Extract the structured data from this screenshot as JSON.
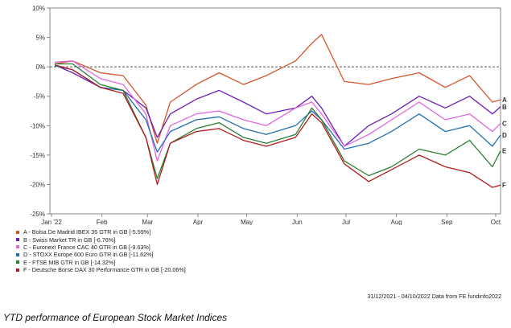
{
  "caption": "YTD performance of European Stock Market Indices",
  "source_note": "31/12/2021 - 04/10/2022 Data from FE fundinfo2022",
  "chart_data": {
    "type": "line",
    "title": "",
    "xlabel": "",
    "ylabel": "",
    "x_ticks": [
      "Jan '22",
      "Feb",
      "Mar",
      "Apr",
      "May",
      "Jun",
      "Jul",
      "Aug",
      "Sep",
      "Oct"
    ],
    "y_ticks": [
      "10%",
      "5%",
      "0%",
      "-5%",
      "-10%",
      "-15%",
      "-20%",
      "-25%"
    ],
    "ylim": [
      -25,
      10
    ],
    "grid": false,
    "zero_line": "dashed",
    "legend_position": "below",
    "x_dates": [
      "2022-01-03",
      "2022-01-14",
      "2022-01-31",
      "2022-02-14",
      "2022-02-28",
      "2022-03-07",
      "2022-03-15",
      "2022-03-31",
      "2022-04-14",
      "2022-04-29",
      "2022-05-13",
      "2022-05-31",
      "2022-06-10",
      "2022-06-16",
      "2022-06-30",
      "2022-07-15",
      "2022-07-29",
      "2022-08-15",
      "2022-08-31",
      "2022-09-15",
      "2022-09-29",
      "2022-10-04"
    ],
    "series": [
      {
        "letter": "A",
        "name": "A - Bolsa De Madrid IBEX 35 GTR in GB [-5.59%]",
        "color": "#d4552b",
        "values": [
          0.5,
          1.0,
          -1.0,
          -1.5,
          -6.5,
          -13.0,
          -6.0,
          -3.0,
          -1.0,
          -3.0,
          -1.5,
          1.0,
          4.0,
          5.5,
          -2.5,
          -3.0,
          -2.0,
          -1.0,
          -3.5,
          -1.5,
          -6.0,
          -5.6
        ]
      },
      {
        "letter": "B",
        "name": "B - Swiss Market TR in GB [-6.76%]",
        "color": "#6a1fb0",
        "values": [
          0.3,
          -1.0,
          -3.5,
          -4.0,
          -7.0,
          -12.0,
          -8.0,
          -5.5,
          -4.0,
          -6.0,
          -8.0,
          -7.0,
          -5.0,
          -7.0,
          -13.5,
          -10.0,
          -8.0,
          -5.0,
          -7.0,
          -5.0,
          -8.0,
          -6.8
        ]
      },
      {
        "letter": "C",
        "name": "C - Euronext France CAC 40 GTR in GB [-9.63%]",
        "color": "#e066e0",
        "values": [
          0.8,
          1.0,
          -2.0,
          -3.0,
          -8.0,
          -16.0,
          -10.0,
          -8.0,
          -7.5,
          -9.0,
          -10.0,
          -7.0,
          -6.0,
          -8.0,
          -13.5,
          -11.5,
          -9.0,
          -6.0,
          -9.0,
          -8.0,
          -11.0,
          -9.6
        ]
      },
      {
        "letter": "D",
        "name": "D - STOXX Europe 600 Euro GTR in GB [-11.62%]",
        "color": "#1f6fb0",
        "values": [
          0.2,
          -0.5,
          -3.5,
          -4.0,
          -9.0,
          -14.5,
          -11.0,
          -9.0,
          -8.5,
          -10.5,
          -11.5,
          -10.0,
          -7.5,
          -9.0,
          -14.0,
          -13.0,
          -11.0,
          -8.0,
          -11.0,
          -10.0,
          -13.5,
          -11.6
        ]
      },
      {
        "letter": "E",
        "name": "E - FTSE MIB GTR in GB [-14.32%]",
        "color": "#2e7d32",
        "values": [
          0.5,
          0.5,
          -3.0,
          -4.0,
          -12.0,
          -19.0,
          -13.0,
          -10.5,
          -9.5,
          -12.0,
          -13.0,
          -11.5,
          -7.0,
          -9.0,
          -16.0,
          -18.5,
          -17.0,
          -14.0,
          -15.0,
          -12.5,
          -17.0,
          -14.3
        ]
      },
      {
        "letter": "F",
        "name": "F - Deutsche Borse DAX 30 Performance GTR in GB [-20.06%]",
        "color": "#b01c1c",
        "values": [
          0.3,
          -0.5,
          -3.5,
          -4.5,
          -12.0,
          -20.0,
          -13.0,
          -11.0,
          -10.5,
          -12.5,
          -13.5,
          -12.0,
          -8.0,
          -9.5,
          -16.5,
          -19.5,
          -17.5,
          -15.0,
          -17.0,
          -18.0,
          -20.5,
          -20.1
        ]
      }
    ]
  }
}
